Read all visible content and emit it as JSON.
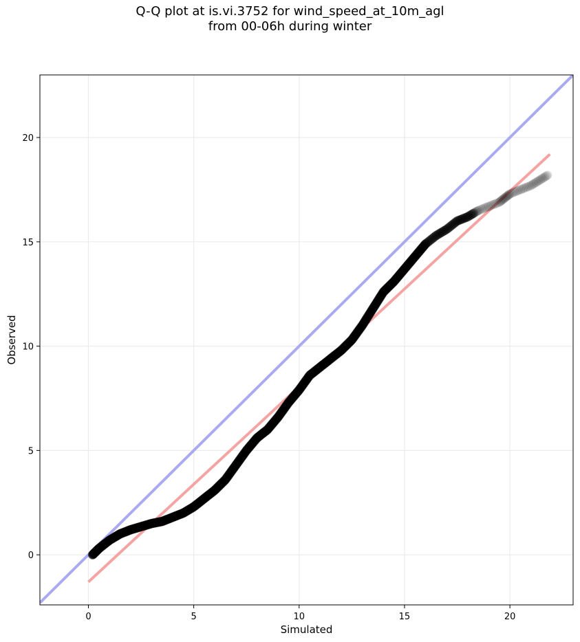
{
  "chart_data": {
    "type": "scatter",
    "title_lines": [
      "Q-Q plot at is.vi.3752 for wind_speed_at_10m_agl",
      "from 00-06h during winter"
    ],
    "xlabel": "Simulated",
    "ylabel": "Observed",
    "xlim": [
      -2.3,
      23.0
    ],
    "ylim": [
      -2.4,
      23.0
    ],
    "x_ticks": [
      0,
      5,
      10,
      15,
      20
    ],
    "y_ticks": [
      0,
      5,
      10,
      15,
      20
    ],
    "grid": true,
    "colors": {
      "points": "#000000",
      "identity_line": "#aaaaf2",
      "fit_line": "#f5a4a4",
      "grid": "#ebebeb"
    },
    "series": [
      {
        "kind": "quantile-points",
        "points": [
          [
            0.2,
            0.0
          ],
          [
            0.5,
            0.3
          ],
          [
            1.0,
            0.7
          ],
          [
            1.5,
            1.0
          ],
          [
            2.0,
            1.2
          ],
          [
            2.5,
            1.35
          ],
          [
            3.0,
            1.5
          ],
          [
            3.5,
            1.6
          ],
          [
            4.0,
            1.8
          ],
          [
            4.5,
            2.0
          ],
          [
            5.0,
            2.3
          ],
          [
            5.5,
            2.7
          ],
          [
            6.0,
            3.1
          ],
          [
            6.5,
            3.6
          ],
          [
            7.0,
            4.3
          ],
          [
            7.5,
            5.0
          ],
          [
            8.0,
            5.6
          ],
          [
            8.5,
            6.0
          ],
          [
            9.0,
            6.6
          ],
          [
            9.5,
            7.3
          ],
          [
            10.0,
            7.9
          ],
          [
            10.5,
            8.6
          ],
          [
            11.0,
            9.0
          ],
          [
            11.5,
            9.4
          ],
          [
            12.0,
            9.8
          ],
          [
            12.5,
            10.3
          ],
          [
            13.0,
            11.0
          ],
          [
            13.5,
            11.8
          ],
          [
            14.0,
            12.6
          ],
          [
            14.5,
            13.1
          ],
          [
            15.0,
            13.7
          ],
          [
            15.5,
            14.3
          ],
          [
            16.0,
            14.9
          ],
          [
            16.5,
            15.3
          ],
          [
            17.0,
            15.6
          ],
          [
            17.5,
            16.0
          ],
          [
            18.0,
            16.2
          ],
          [
            18.5,
            16.5
          ],
          [
            19.5,
            16.9
          ],
          [
            20.0,
            17.3
          ],
          [
            21.0,
            17.7
          ],
          [
            21.8,
            18.2
          ]
        ]
      },
      {
        "kind": "identity-line",
        "x": [
          -2.3,
          23.0
        ],
        "y": [
          -2.3,
          23.0
        ]
      },
      {
        "kind": "fit-line",
        "x": [
          0.0,
          21.9
        ],
        "y": [
          -1.3,
          19.2
        ]
      }
    ]
  }
}
